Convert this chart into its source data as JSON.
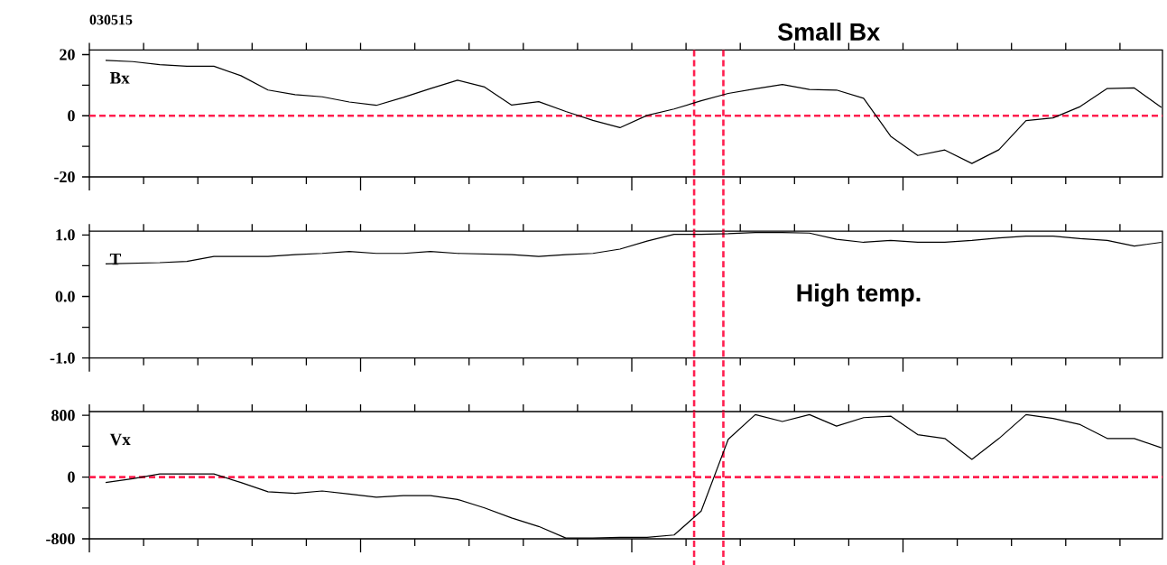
{
  "chart_data": [
    {
      "type": "line",
      "title": "030515",
      "annotations": [
        "Small Bx"
      ],
      "tick_labels": "y",
      "categories": [
        null,
        null,
        null,
        null,
        null,
        null,
        null,
        null,
        null,
        null,
        null,
        null,
        null,
        null,
        null,
        null,
        null,
        null,
        null,
        null,
        null,
        null,
        null,
        null,
        null,
        null,
        null,
        null,
        null,
        null,
        null,
        null,
        null,
        null,
        null,
        null,
        null,
        null,
        null,
        null
      ],
      "ylim": [
        -20,
        21.5
      ],
      "yticks": [
        -20,
        {
          "value": -10,
          "label": null
        },
        0,
        {
          "value": 10,
          "label": null
        },
        20
      ],
      "ref_lines": [
        {
          "axis": "y",
          "value": 0,
          "color": "#ff1f4f",
          "line_style": "dashed"
        }
      ],
      "series": [
        {
          "name": "Bx",
          "color": "#000000",
          "values": [
            18.1,
            17.7,
            16.7,
            16.2,
            16.2,
            13.1,
            8.4,
            6.9,
            6.2,
            4.5,
            3.4,
            6.0,
            8.9,
            11.6,
            9.4,
            3.5,
            4.6,
            1.4,
            -1.5,
            -3.9,
            0.1,
            2.2,
            4.9,
            7.3,
            8.8,
            10.2,
            8.6,
            8.4,
            5.7,
            -6.7,
            -13.0,
            -11.2,
            -15.6,
            -11.1,
            -1.6,
            -0.7,
            3.0,
            8.9,
            9.1,
            2.7
          ]
        }
      ]
    },
    {
      "type": "line",
      "annotations": [
        "High temp."
      ],
      "tick_labels": "y",
      "categories": [
        null,
        null,
        null,
        null,
        null,
        null,
        null,
        null,
        null,
        null,
        null,
        null,
        null,
        null,
        null,
        null,
        null,
        null,
        null,
        null,
        null,
        null,
        null,
        null,
        null,
        null,
        null,
        null,
        null,
        null,
        null,
        null,
        null,
        null,
        null,
        null,
        null,
        null,
        null,
        null
      ],
      "ylim": [
        -1.0,
        1.06
      ],
      "yticks": [
        {
          "value": -1.0,
          "label": "-1.0"
        },
        {
          "value": -0.5,
          "label": null
        },
        {
          "value": 0.0,
          "label": "0.0"
        },
        {
          "value": 0.5,
          "label": null
        },
        {
          "value": 1.0,
          "label": "1.0"
        }
      ],
      "series": [
        {
          "name": "T",
          "color": "#000000",
          "values": [
            0.53,
            0.54,
            0.55,
            0.57,
            0.65,
            0.65,
            0.65,
            0.68,
            0.7,
            0.73,
            0.7,
            0.7,
            0.73,
            0.7,
            0.69,
            0.68,
            0.65,
            0.68,
            0.7,
            0.77,
            0.9,
            1.01,
            1.01,
            1.02,
            1.04,
            1.04,
            1.03,
            0.93,
            0.88,
            0.91,
            0.88,
            0.88,
            0.91,
            0.95,
            0.98,
            0.98,
            0.94,
            0.91,
            0.82,
            0.88
          ]
        }
      ]
    },
    {
      "type": "line",
      "tick_labels": "y",
      "categories": [
        null,
        null,
        null,
        null,
        null,
        null,
        null,
        null,
        null,
        null,
        null,
        null,
        null,
        null,
        null,
        null,
        null,
        null,
        null,
        null,
        null,
        null,
        null,
        null,
        null,
        null,
        null,
        null,
        null,
        null,
        null,
        null,
        null,
        null,
        null,
        null,
        null,
        null,
        null,
        null
      ],
      "ylim": [
        -800,
        849
      ],
      "yticks": [
        -800,
        {
          "value": -400,
          "label": null
        },
        0,
        {
          "value": 400,
          "label": null
        },
        800
      ],
      "ref_lines": [
        {
          "axis": "y",
          "value": 0,
          "color": "#ff1f4f",
          "line_style": "dashed"
        }
      ],
      "series": [
        {
          "name": "Vx",
          "color": "#000000",
          "values": [
            -70,
            -20,
            40,
            40,
            40,
            -70,
            -190,
            -210,
            -180,
            -220,
            -260,
            -240,
            -240,
            -290,
            -400,
            -530,
            -640,
            -790,
            -790,
            -780,
            -780,
            -750,
            -440,
            490,
            810,
            720,
            810,
            660,
            770,
            790,
            550,
            500,
            230,
            500,
            810,
            760,
            680,
            500,
            500,
            380
          ]
        }
      ]
    }
  ]
}
